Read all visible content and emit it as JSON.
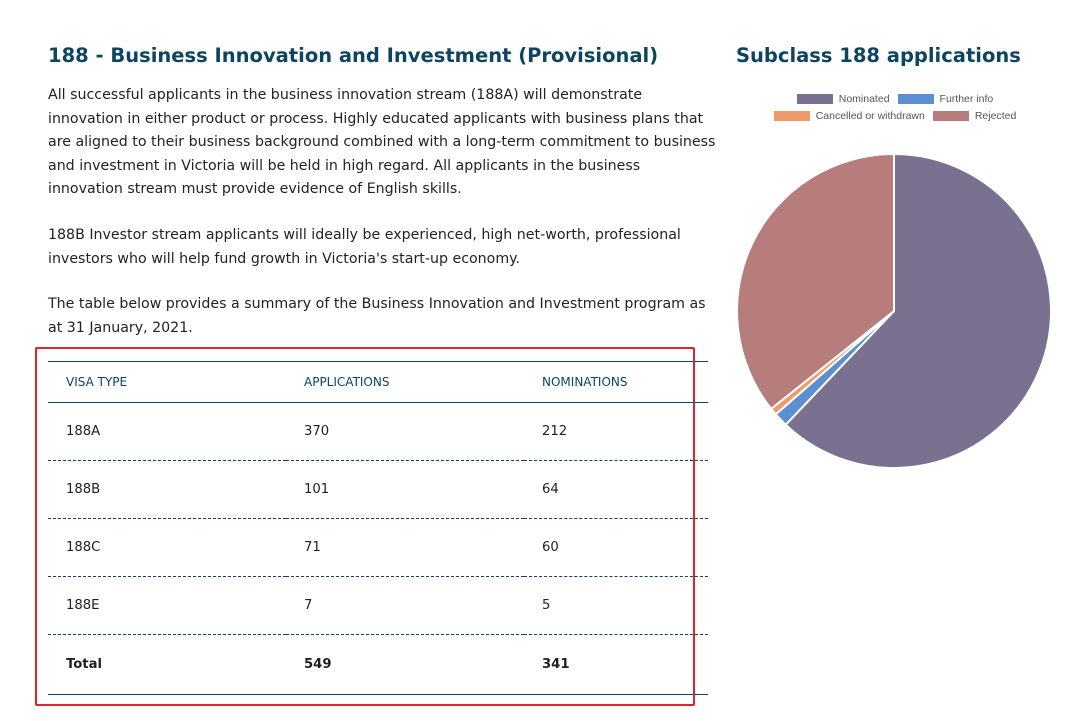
{
  "content": {
    "heading": "188 - Business Innovation and Investment (Provisional)",
    "paragraphs": [
      "All successful applicants in the business innovation stream (188A) will demonstrate innovation in either product or process. Highly educated applicants with business plans that are aligned to their business background combined with a long-term commitment to business and investment in Victoria will be held in high regard. All applicants in the business innovation stream must provide evidence of English skills.",
      "188B Investor stream applicants will ideally be experienced, high net-worth, professional investors who will help fund growth in Victoria's start-up economy.",
      "The table below provides a summary of the Business Innovation and Investment program as at 31 January, 2021."
    ]
  },
  "table": {
    "headers": [
      "VISA TYPE",
      "APPLICATIONS",
      "NOMINATIONS"
    ],
    "rows": [
      [
        "188A",
        "370",
        "212"
      ],
      [
        "188B",
        "101",
        "64"
      ],
      [
        "188C",
        "71",
        "60"
      ],
      [
        "188E",
        "7",
        "5"
      ]
    ],
    "total": [
      "Total",
      "549",
      "341"
    ]
  },
  "chart_data": {
    "type": "pie",
    "title": "Subclass 188 applications",
    "categories": [
      "Nominated",
      "Further info",
      "Cancelled or withdrawn",
      "Rejected"
    ],
    "values": [
      341,
      8,
      4,
      196
    ],
    "colors": [
      "#7a7190",
      "#5b8fcf",
      "#ef9a6b",
      "#b77c7c"
    ],
    "legend_position": "top",
    "start_angle_deg": 0,
    "direction": "clockwise"
  }
}
